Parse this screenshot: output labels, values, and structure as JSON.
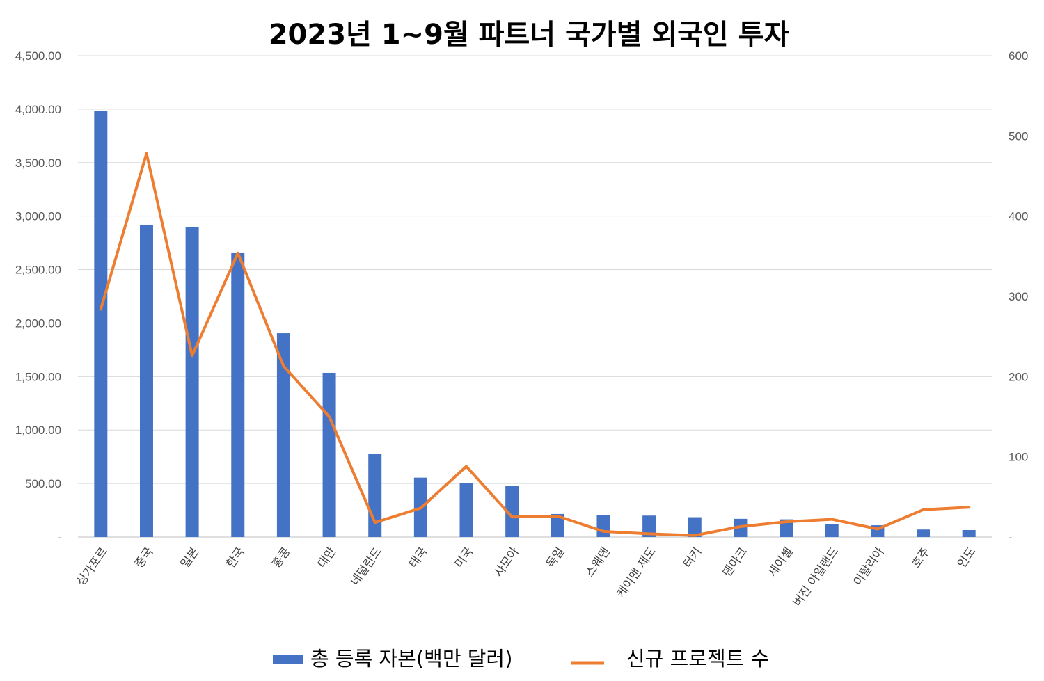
{
  "chart_data": {
    "type": "bar+line",
    "title": "2023년 1~9월 파트너 국가별 외국인 투자",
    "categories": [
      "싱가포르",
      "중국",
      "일본",
      "한국",
      "홍콩",
      "대만",
      "네덜란드",
      "태국",
      "미국",
      "사모아",
      "독일",
      "스웨덴",
      "케이맨 제도",
      "터키",
      "덴마크",
      "세이셸",
      "버진 아일랜드",
      "이탈리아",
      "호주",
      "인도"
    ],
    "series": [
      {
        "name": "총 등록 자본(백만 달러)",
        "type": "bar",
        "axis": "left",
        "color": "#4472C4",
        "values": [
          3980,
          2920,
          2895,
          2660,
          1905,
          1535,
          780,
          555,
          505,
          480,
          215,
          205,
          200,
          185,
          170,
          165,
          120,
          110,
          70,
          65
        ]
      },
      {
        "name": "신규 프로젝트 수",
        "type": "line",
        "axis": "right",
        "color": "#ED7D31",
        "values": [
          284,
          478,
          226,
          354,
          213,
          150,
          18,
          36,
          88,
          25,
          26,
          7,
          4,
          2,
          13,
          19,
          22,
          10,
          34,
          37
        ]
      }
    ],
    "left_axis": {
      "ylim": [
        0,
        4500
      ],
      "ticks": [
        0,
        500,
        1000,
        1500,
        2000,
        2500,
        3000,
        3500,
        4000,
        4500
      ],
      "tick_labels": [
        "-",
        "500.00",
        "1,000.00",
        "1,500.00",
        "2,000.00",
        "2,500.00",
        "3,000.00",
        "3,500.00",
        "4,000.00",
        "4,500.00"
      ]
    },
    "right_axis": {
      "ylim": [
        0,
        600
      ],
      "ticks": [
        0,
        100,
        200,
        300,
        400,
        500,
        600
      ],
      "tick_labels": [
        "-",
        "100",
        "200",
        "300",
        "400",
        "500",
        "600"
      ]
    },
    "grid": true,
    "legend_position": "bottom"
  }
}
